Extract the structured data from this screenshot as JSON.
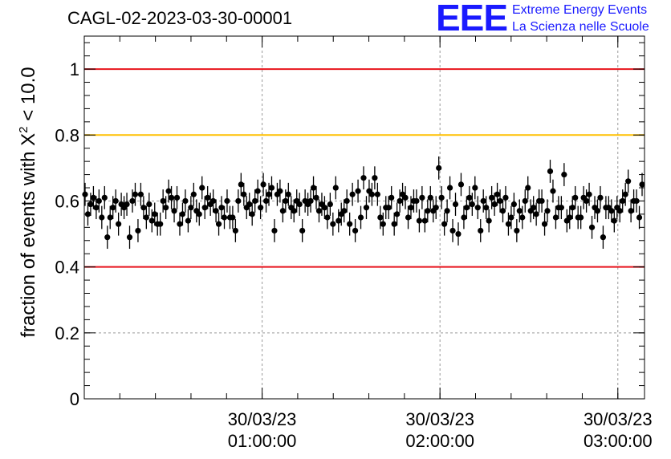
{
  "chart_data": {
    "type": "scatter",
    "title": "CAGL-02-2023-03-30-00001",
    "ylabel": {
      "prefix": "fraction of events with ",
      "symbol": "X",
      "superscript": "2",
      "suffix": " < 10.0"
    },
    "xlabel": "",
    "ylim": [
      0,
      1.1
    ],
    "xlim_seconds": [
      0,
      11340
    ],
    "y_ticks": [
      {
        "value": 0,
        "label": "0"
      },
      {
        "value": 0.2,
        "label": "0.2"
      },
      {
        "value": 0.4,
        "label": "0.4"
      },
      {
        "value": 0.6,
        "label": "0.6"
      },
      {
        "value": 0.8,
        "label": "0.8"
      },
      {
        "value": 1,
        "label": "1"
      }
    ],
    "x_ticks": [
      {
        "seconds": 3600,
        "date": "30/03/23",
        "time": "01:00:00"
      },
      {
        "seconds": 7200,
        "date": "30/03/23",
        "time": "02:00:00"
      },
      {
        "seconds": 10800,
        "date": "30/03/23",
        "time": "03:00:00"
      }
    ],
    "reference_lines": [
      {
        "y": 1.0,
        "color": "#e8141c"
      },
      {
        "y": 0.8,
        "color": "#ffc000"
      },
      {
        "y": 0.4,
        "color": "#e8141c"
      }
    ],
    "grid": "dashed at major ticks",
    "error": 0.035,
    "values": [
      0.62,
      0.56,
      0.59,
      0.61,
      0.58,
      0.6,
      0.55,
      0.61,
      0.49,
      0.55,
      0.58,
      0.6,
      0.53,
      0.59,
      0.58,
      0.59,
      0.49,
      0.6,
      0.62,
      0.51,
      0.62,
      0.58,
      0.55,
      0.59,
      0.54,
      0.56,
      0.53,
      0.53,
      0.6,
      0.58,
      0.63,
      0.61,
      0.57,
      0.61,
      0.53,
      0.56,
      0.6,
      0.54,
      0.58,
      0.62,
      0.57,
      0.56,
      0.64,
      0.58,
      0.61,
      0.59,
      0.6,
      0.57,
      0.53,
      0.58,
      0.55,
      0.6,
      0.55,
      0.55,
      0.51,
      0.6,
      0.65,
      0.62,
      0.58,
      0.59,
      0.56,
      0.6,
      0.63,
      0.58,
      0.65,
      0.6,
      0.62,
      0.64,
      0.51,
      0.62,
      0.63,
      0.57,
      0.6,
      0.62,
      0.58,
      0.57,
      0.6,
      0.59,
      0.51,
      0.6,
      0.59,
      0.6,
      0.64,
      0.61,
      0.57,
      0.59,
      0.58,
      0.55,
      0.59,
      0.53,
      0.64,
      0.54,
      0.56,
      0.57,
      0.6,
      0.53,
      0.62,
      0.51,
      0.63,
      0.55,
      0.67,
      0.58,
      0.63,
      0.62,
      0.67,
      0.62,
      0.55,
      0.53,
      0.58,
      0.58,
      0.61,
      0.53,
      0.56,
      0.6,
      0.62,
      0.61,
      0.55,
      0.58,
      0.6,
      0.6,
      0.54,
      0.61,
      0.54,
      0.57,
      0.61,
      0.57,
      0.58,
      0.7,
      0.61,
      0.53,
      0.57,
      0.64,
      0.51,
      0.59,
      0.5,
      0.65,
      0.55,
      0.58,
      0.61,
      0.59,
      0.64,
      0.58,
      0.51,
      0.6,
      0.58,
      0.54,
      0.61,
      0.59,
      0.62,
      0.6,
      0.57,
      0.61,
      0.53,
      0.55,
      0.59,
      0.51,
      0.57,
      0.55,
      0.6,
      0.64,
      0.57,
      0.58,
      0.56,
      0.6,
      0.6,
      0.53,
      0.57,
      0.69,
      0.63,
      0.55,
      0.58,
      0.58,
      0.68,
      0.54,
      0.55,
      0.58,
      0.61,
      0.55,
      0.55,
      0.61,
      0.6,
      0.62,
      0.52,
      0.58,
      0.57,
      0.61,
      0.49,
      0.58,
      0.58,
      0.57,
      0.54,
      0.58,
      0.57,
      0.6,
      0.62,
      0.66,
      0.57,
      0.6,
      0.6,
      0.55,
      0.65
    ]
  },
  "logo": {
    "mark": "EEE",
    "line1": "Extreme Energy Events",
    "line2": "La Scienza nelle Scuole",
    "color": "#1a1aff"
  }
}
